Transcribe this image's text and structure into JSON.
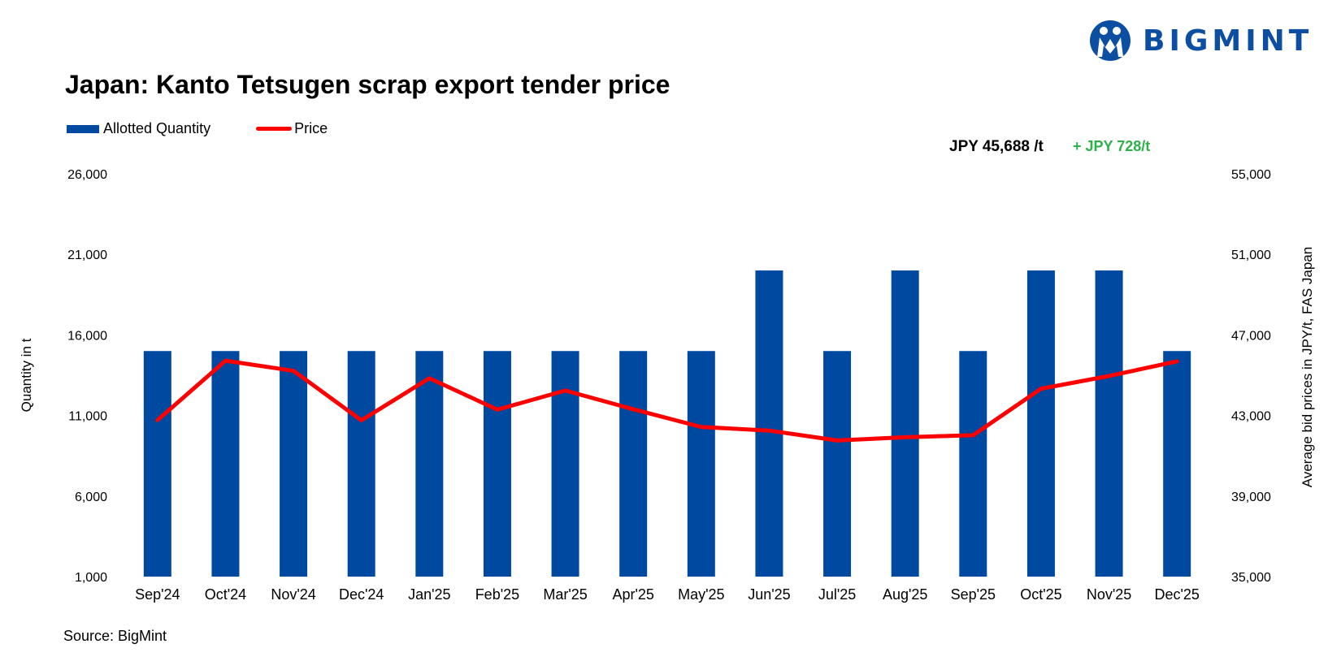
{
  "brand": {
    "name": "BIGMINT",
    "color": "#0b4ea2"
  },
  "header": {
    "title": "Japan: Kanto Tetsugen scrap export tender price"
  },
  "legend": {
    "bar_label": "Allotted Quantity",
    "line_label": "Price"
  },
  "latest": {
    "price": "JPY 45,688 /t",
    "change": "+ JPY 728/t",
    "change_color": "#2db24a"
  },
  "footer": {
    "source": "Source: BigMint"
  },
  "chart_data": {
    "type": "bar",
    "categories": [
      "Sep'24",
      "Oct'24",
      "Nov'24",
      "Dec'24",
      "Jan'25",
      "Feb'25",
      "Mar'25",
      "Apr'25",
      "May'25",
      "Jun'25",
      "Jul'25",
      "Aug'25",
      "Sep'25",
      "Oct'25",
      "Nov'25",
      "Dec'25"
    ],
    "series": [
      {
        "name": "Allotted Quantity",
        "type": "bar",
        "axis": "left",
        "color": "#0049a0",
        "values": [
          15000,
          15000,
          15000,
          15000,
          15000,
          15000,
          15000,
          15000,
          15000,
          20000,
          15000,
          20000,
          15000,
          20000,
          20000,
          15000
        ]
      },
      {
        "name": "Price",
        "type": "line",
        "axis": "right",
        "color": "#ff0000",
        "values": [
          42770,
          45720,
          45220,
          42760,
          44850,
          43290,
          44240,
          43310,
          42430,
          42250,
          41760,
          41920,
          42020,
          44330,
          44960,
          45688
        ]
      }
    ],
    "ylabel": "Quantity in t",
    "y2label": "Average bid prices in JPY/t, FAS Japan",
    "ylim": [
      1000,
      26000
    ],
    "yticks": [
      "1,000",
      "6,000",
      "11,000",
      "16,000",
      "21,000",
      "26,000"
    ],
    "y2lim": [
      35000,
      55000
    ],
    "y2ticks": [
      "35,000",
      "39,000",
      "43,000",
      "47,000",
      "51,000",
      "55,000"
    ],
    "grid": false,
    "legend_position": "top-left"
  }
}
